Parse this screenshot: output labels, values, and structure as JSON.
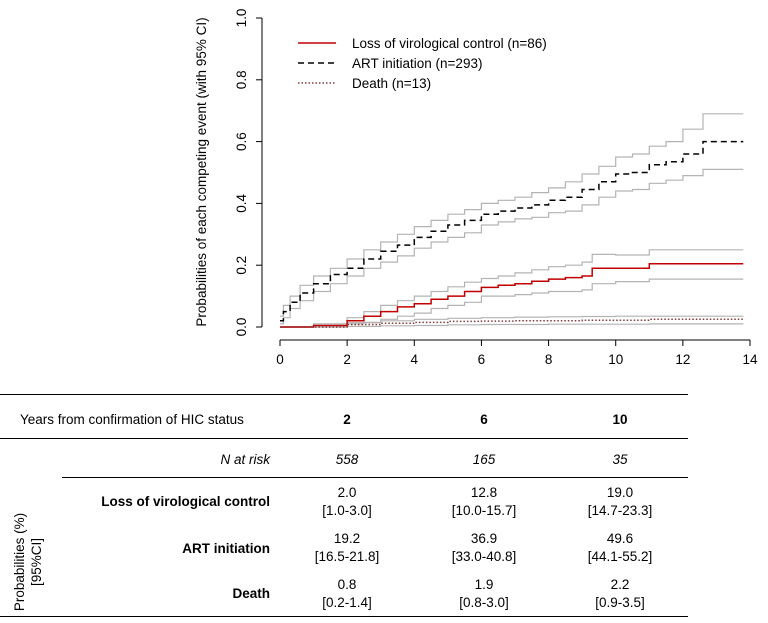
{
  "chart_data": {
    "type": "line",
    "ylabel": "Probabilities of each competing event (with 95% CI)",
    "xlabel": "",
    "xlim": [
      0,
      14
    ],
    "ylim": [
      0,
      1.0
    ],
    "x_ticks": [
      0,
      2,
      4,
      6,
      8,
      10,
      12,
      14
    ],
    "y_ticks": [
      0.0,
      0.2,
      0.4,
      0.6,
      0.8,
      1.0
    ],
    "x_tick_labels": [
      "0",
      "2",
      "4",
      "6",
      "8",
      "10",
      "12",
      "14"
    ],
    "y_tick_labels": [
      "0.0",
      "0.2",
      "0.4",
      "0.6",
      "0.8",
      "1.0"
    ],
    "legend": [
      {
        "label": "Loss of virological control (n=86)",
        "style": "solid",
        "color": "#c00000"
      },
      {
        "label": "ART initiation (n=293)",
        "style": "dashed",
        "color": "#000000"
      },
      {
        "label": "Death (n=13)",
        "style": "dotted",
        "color": "#8b3a3a"
      }
    ],
    "ci_color": "#b3b3b3",
    "series": [
      {
        "name": "ART initiation",
        "x": [
          0,
          0.1,
          0.3,
          0.6,
          1.0,
          1.5,
          2.0,
          2.5,
          3.0,
          3.5,
          4.0,
          4.5,
          5.0,
          5.5,
          6.0,
          6.5,
          7.0,
          7.5,
          8.0,
          8.5,
          9.0,
          9.5,
          10.0,
          10.5,
          11.0,
          11.5,
          12.0,
          12.6,
          13.8
        ],
        "values": [
          0.02,
          0.05,
          0.08,
          0.11,
          0.14,
          0.17,
          0.19,
          0.22,
          0.245,
          0.265,
          0.29,
          0.31,
          0.33,
          0.345,
          0.365,
          0.375,
          0.385,
          0.395,
          0.41,
          0.42,
          0.445,
          0.47,
          0.495,
          0.5,
          0.525,
          0.535,
          0.56,
          0.6,
          0.6
        ],
        "ci_low": [
          0.01,
          0.03,
          0.06,
          0.085,
          0.115,
          0.14,
          0.165,
          0.19,
          0.21,
          0.23,
          0.255,
          0.275,
          0.29,
          0.305,
          0.33,
          0.34,
          0.35,
          0.355,
          0.37,
          0.375,
          0.395,
          0.42,
          0.44,
          0.445,
          0.465,
          0.475,
          0.49,
          0.51,
          0.51
        ],
        "ci_high": [
          0.035,
          0.07,
          0.1,
          0.135,
          0.165,
          0.19,
          0.22,
          0.25,
          0.275,
          0.3,
          0.325,
          0.345,
          0.365,
          0.38,
          0.4,
          0.41,
          0.42,
          0.435,
          0.45,
          0.47,
          0.495,
          0.52,
          0.55,
          0.56,
          0.585,
          0.6,
          0.64,
          0.69,
          0.69
        ]
      },
      {
        "name": "Loss of virological control",
        "x": [
          0,
          1.0,
          2.0,
          2.5,
          3.0,
          3.5,
          4.0,
          4.5,
          5.0,
          5.5,
          6.0,
          6.5,
          7.0,
          7.5,
          8.0,
          8.5,
          9.0,
          9.3,
          10.0,
          10.5,
          11.0,
          12.0,
          13.8
        ],
        "values": [
          0.0,
          0.005,
          0.02,
          0.035,
          0.05,
          0.065,
          0.075,
          0.09,
          0.1,
          0.115,
          0.128,
          0.135,
          0.14,
          0.148,
          0.155,
          0.16,
          0.165,
          0.19,
          0.19,
          0.19,
          0.205,
          0.205,
          0.205
        ],
        "ci_low": [
          0.0,
          0.0,
          0.01,
          0.015,
          0.025,
          0.035,
          0.045,
          0.06,
          0.07,
          0.08,
          0.1,
          0.1,
          0.105,
          0.11,
          0.115,
          0.115,
          0.12,
          0.14,
          0.147,
          0.147,
          0.155,
          0.155,
          0.155
        ],
        "ci_high": [
          0.0,
          0.01,
          0.03,
          0.05,
          0.07,
          0.085,
          0.1,
          0.115,
          0.13,
          0.145,
          0.157,
          0.165,
          0.175,
          0.185,
          0.195,
          0.2,
          0.21,
          0.235,
          0.233,
          0.233,
          0.25,
          0.25,
          0.25
        ]
      },
      {
        "name": "Death",
        "x": [
          0,
          2.0,
          3.0,
          4.0,
          5.0,
          6.0,
          7.0,
          8.0,
          9.0,
          10.0,
          11.0,
          12.0,
          13.8
        ],
        "values": [
          0.0,
          0.008,
          0.012,
          0.015,
          0.018,
          0.019,
          0.02,
          0.02,
          0.022,
          0.022,
          0.025,
          0.025,
          0.025
        ],
        "ci_low": [
          0.0,
          0.002,
          0.004,
          0.005,
          0.007,
          0.008,
          0.008,
          0.009,
          0.009,
          0.009,
          0.01,
          0.01,
          0.01
        ],
        "ci_high": [
          0.0,
          0.014,
          0.02,
          0.025,
          0.028,
          0.03,
          0.032,
          0.033,
          0.034,
          0.035,
          0.035,
          0.035,
          0.035
        ]
      }
    ]
  },
  "table": {
    "header_label": "Years from confirmation of HIC status",
    "columns": [
      "2",
      "6",
      "10"
    ],
    "n_at_risk_label": "N at risk",
    "n_at_risk": [
      "558",
      "165",
      "35"
    ],
    "side_label_line1": "Probabilities (%)",
    "side_label_line2": "[95%CI]",
    "rows": [
      {
        "label": "Loss of  virological control",
        "cells": [
          {
            "value": "2.0",
            "ci": "[1.0-3.0]"
          },
          {
            "value": "12.8",
            "ci": "[10.0-15.7]"
          },
          {
            "value": "19.0",
            "ci": "[14.7-23.3]"
          }
        ]
      },
      {
        "label": "ART initiation",
        "cells": [
          {
            "value": "19.2",
            "ci": "[16.5-21.8]"
          },
          {
            "value": "36.9",
            "ci": "[33.0-40.8]"
          },
          {
            "value": "49.6",
            "ci": "[44.1-55.2]"
          }
        ]
      },
      {
        "label": "Death",
        "cells": [
          {
            "value": "0.8",
            "ci": "[0.2-1.4]"
          },
          {
            "value": "1.9",
            "ci": "[0.8-3.0]"
          },
          {
            "value": "2.2",
            "ci": "[0.9-3.5]"
          }
        ]
      }
    ]
  }
}
